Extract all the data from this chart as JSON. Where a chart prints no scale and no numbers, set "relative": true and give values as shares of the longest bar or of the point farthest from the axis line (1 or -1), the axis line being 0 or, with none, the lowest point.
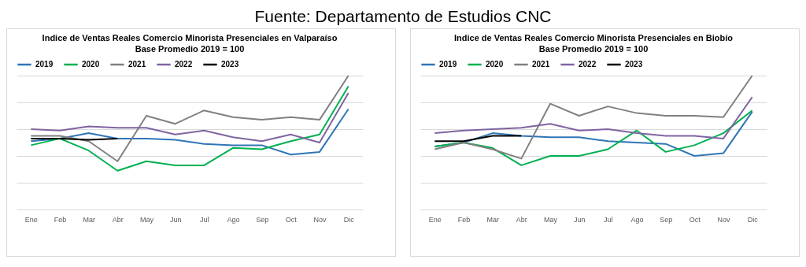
{
  "chart_data": [
    {
      "type": "line",
      "title": "Indice de Ventas Reales Comercio Minorista Presenciales en Valparaíso",
      "subtitle": "Base Promedio 2019 = 100",
      "annotations": [
        "Fuente: Departamento de Estudios CNC"
      ],
      "relative": true,
      "grid": "y",
      "legend": "top",
      "categories": [
        "Ene",
        "Feb",
        "Mar",
        "Abr",
        "May",
        "Jun",
        "Jul",
        "Ago",
        "Sep",
        "Oct",
        "Nov",
        "Dic"
      ],
      "series": [
        {
          "name": "2019",
          "color": "#2e75b6",
          "values": [
            0.51,
            0.53,
            0.57,
            0.53,
            0.53,
            0.52,
            0.49,
            0.48,
            0.48,
            0.41,
            0.43,
            0.75
          ]
        },
        {
          "name": "2020",
          "color": "#00b050",
          "values": [
            0.48,
            0.53,
            0.44,
            0.29,
            0.36,
            0.33,
            0.33,
            0.46,
            0.45,
            0.51,
            0.56,
            0.92
          ]
        },
        {
          "name": "2021",
          "color": "#808080",
          "values": [
            0.55,
            0.55,
            0.51,
            0.36,
            0.7,
            0.64,
            0.74,
            0.69,
            0.67,
            0.69,
            0.67,
            1.0
          ]
        },
        {
          "name": "2022",
          "color": "#8064a2",
          "values": [
            0.6,
            0.59,
            0.62,
            0.61,
            0.61,
            0.56,
            0.59,
            0.54,
            0.51,
            0.56,
            0.5,
            0.87
          ]
        },
        {
          "name": "2023",
          "color": "#000000",
          "values": [
            0.53,
            0.53,
            0.52,
            0.53,
            null,
            null,
            null,
            null,
            null,
            null,
            null,
            null
          ]
        }
      ]
    },
    {
      "type": "line",
      "title": "Indice de Ventas Reales Comercio Minorista Presenciales en Biobío",
      "subtitle": "Base Promedio 2019 = 100",
      "relative": true,
      "grid": "y",
      "legend": "top",
      "categories": [
        "Ene",
        "Feb",
        "Mar",
        "Abr",
        "May",
        "Jun",
        "Jul",
        "Ago",
        "Sep",
        "Oct",
        "Nov",
        "Dic"
      ],
      "series": [
        {
          "name": "2019",
          "color": "#2e75b6",
          "values": [
            0.47,
            0.5,
            0.57,
            0.55,
            0.54,
            0.54,
            0.51,
            0.5,
            0.49,
            0.4,
            0.42,
            0.73
          ]
        },
        {
          "name": "2020",
          "color": "#00b050",
          "values": [
            0.47,
            0.5,
            0.46,
            0.33,
            0.4,
            0.4,
            0.45,
            0.59,
            0.43,
            0.48,
            0.57,
            0.74
          ]
        },
        {
          "name": "2021",
          "color": "#808080",
          "values": [
            0.45,
            0.5,
            0.45,
            0.38,
            0.79,
            0.7,
            0.77,
            0.72,
            0.7,
            0.7,
            0.69,
            1.0
          ]
        },
        {
          "name": "2022",
          "color": "#8064a2",
          "values": [
            0.57,
            0.59,
            0.6,
            0.61,
            0.64,
            0.59,
            0.6,
            0.57,
            0.55,
            0.55,
            0.53,
            0.84
          ]
        },
        {
          "name": "2023",
          "color": "#000000",
          "values": [
            0.51,
            0.51,
            0.55,
            0.55,
            null,
            null,
            null,
            null,
            null,
            null,
            null,
            null
          ]
        }
      ]
    }
  ]
}
